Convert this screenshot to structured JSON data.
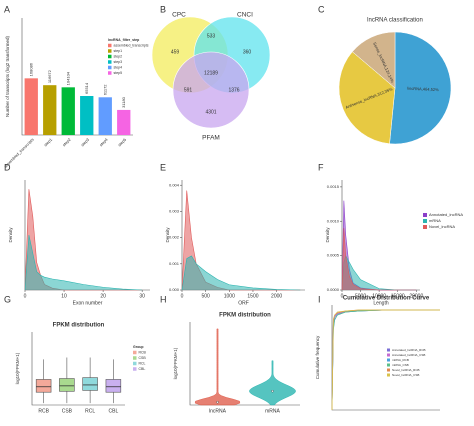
{
  "chart_data": [
    {
      "type": "bar",
      "panel": "A",
      "ylabel": "Number of transcripts (log2 transformed)",
      "categories": [
        "assembled_transcripts",
        "step1",
        "step2",
        "step3",
        "step4",
        "step5"
      ],
      "values": [
        168086,
        116672,
        104104,
        65514,
        61172,
        31180
      ],
      "colors": [
        "#f8766d",
        "#b79f00",
        "#00ba38",
        "#00bfc4",
        "#619cff",
        "#f564e3"
      ],
      "legend_title": "lncRNA_filter_step",
      "ylog": 2,
      "ylim": [
        8192,
        4194304
      ]
    },
    {
      "type": "venn",
      "panel": "B",
      "sets": [
        {
          "name": "CPC",
          "color": "#f3ec5c"
        },
        {
          "name": "CNCI",
          "color": "#5fe3ee"
        },
        {
          "name": "PFAM",
          "color": "#c8a6ef"
        }
      ],
      "regions": [
        459,
        533,
        360,
        12189,
        591,
        1376,
        4301
      ]
    },
    {
      "type": "pie",
      "panel": "C",
      "title": "lncRNA classification",
      "values": [
        464,
        312,
        124
      ],
      "value_labels": [
        "lincRNA,464,52%",
        "Antisense_lncRNA,312,35%",
        "Sense_lncRNA,124,14%"
      ],
      "colors": [
        "#3fa2d4",
        "#e7c942",
        "#d2b48c"
      ]
    },
    {
      "type": "area",
      "panel": "D",
      "xlabel": "Exon number",
      "ylabel": "Density",
      "x": [
        0,
        1,
        2,
        3,
        4,
        5,
        7,
        10,
        15,
        20,
        25,
        30
      ],
      "xlim": [
        0,
        32
      ],
      "xticks": [
        0,
        10,
        20,
        30
      ],
      "ylim": [
        0,
        0.6
      ],
      "series": [
        {
          "color": "#e05a5a",
          "values": [
            0,
            0.55,
            0.4,
            0.15,
            0.08,
            0.03,
            0.01,
            0,
            0,
            0,
            0,
            0
          ]
        },
        {
          "color": "#2bb5b0",
          "values": [
            0,
            0.3,
            0.2,
            0.1,
            0.08,
            0.07,
            0.06,
            0.05,
            0.03,
            0.015,
            0.005,
            0
          ]
        }
      ]
    },
    {
      "type": "area",
      "panel": "E",
      "xlabel": "ORF",
      "ylabel": "Density",
      "x": [
        0,
        100,
        200,
        300,
        500,
        750,
        1000,
        1500,
        2000,
        2500
      ],
      "xlim": [
        0,
        2600
      ],
      "xticks": [
        0,
        500,
        1000,
        1500,
        2000
      ],
      "ylim": [
        0,
        0.0042
      ],
      "yticks": [
        {
          "value": 0,
          "label": "0.000"
        },
        0.001,
        0.002,
        0.003,
        0.004
      ],
      "series": [
        {
          "color": "#e05a5a",
          "values": [
            0,
            0.0038,
            0.002,
            0.001,
            0.0003,
            0.0001,
            0,
            0,
            0,
            0
          ]
        },
        {
          "color": "#2bb5b0",
          "values": [
            0,
            0.0012,
            0.0013,
            0.001,
            0.0007,
            0.0004,
            0.0002,
            8e-05,
            2e-05,
            0
          ]
        }
      ]
    },
    {
      "type": "area",
      "panel": "F",
      "xlabel": "Length",
      "ylabel": "Density",
      "x": [
        0,
        500,
        1000,
        2000,
        3000,
        5000,
        10000,
        15000,
        20000
      ],
      "xlim": [
        0,
        21000
      ],
      "xticks": [
        0,
        5000,
        10000,
        15000,
        20000
      ],
      "ylim": [
        0,
        0.0016
      ],
      "yticks": [
        {
          "value": 0,
          "label": "0.0000"
        },
        0.0005,
        {
          "value": 0.001,
          "label": "0.0010"
        },
        0.0015
      ],
      "series": [
        {
          "name": "Annotated_lncRNA",
          "color": "#8b3fc9",
          "values": [
            0,
            0.0013,
            0.0008,
            0.0003,
            0.0001,
            3e-05,
            0,
            0,
            0
          ]
        },
        {
          "name": "mRNA",
          "color": "#2bb5b0",
          "values": [
            0,
            0.0004,
            0.0005,
            0.0004,
            0.0003,
            0.00015,
            2e-05,
            0,
            0
          ]
        },
        {
          "name": "Novel_lncRNA",
          "color": "#e05a5a",
          "values": [
            0,
            0.0009,
            0.0005,
            0.0002,
            8e-05,
            2e-05,
            0,
            0,
            0
          ]
        }
      ]
    },
    {
      "type": "box",
      "panel": "G",
      "title": "FPKM distribution",
      "ylabel": "log10(FPKM+1)",
      "legend_title": "Group",
      "categories": [
        "RCB",
        "CSB",
        "RCL",
        "CBL"
      ],
      "colors": [
        "#f4a99a",
        "#a9d98f",
        "#8fd9dc",
        "#c9b0ef"
      ],
      "whisker_low": [
        0.1,
        0.1,
        0.1,
        0.1
      ],
      "q1": [
        0.7,
        0.75,
        0.8,
        0.7
      ],
      "median": [
        1.0,
        1.05,
        1.1,
        1.0
      ],
      "q3": [
        1.4,
        1.45,
        1.5,
        1.4
      ],
      "whisker_high": [
        2.5,
        2.6,
        2.6,
        2.5
      ],
      "ylim": [
        0,
        4
      ]
    },
    {
      "type": "violin",
      "panel": "H",
      "title": "FPKM distribution",
      "ylabel": "log10(FPKM+1)",
      "categories": [
        "lncRNA",
        "mRNA"
      ],
      "colors": [
        "#e0604f",
        "#2bb5b0"
      ],
      "median": [
        0.2,
        1.0
      ],
      "max": [
        5.5,
        3.2
      ],
      "ylim": [
        0,
        6
      ]
    },
    {
      "type": "line",
      "panel": "I",
      "title": "Cumulative Distribution Curve",
      "ylabel": "Cumulative frequency",
      "x": [
        0,
        0.05,
        0.1,
        0.2,
        0.5,
        1,
        2,
        4
      ],
      "xlim": [
        0,
        4
      ],
      "ylim": [
        0,
        1.05
      ],
      "series": [
        {
          "name": "Annotated_lncRNA_RCB",
          "color": "#7b6fd6",
          "values": [
            0,
            0.86,
            0.93,
            0.96,
            0.98,
            0.99,
            1,
            1
          ]
        },
        {
          "name": "Annotated_lncRNA_CSB",
          "color": "#c46bd1",
          "values": [
            0,
            0.88,
            0.94,
            0.97,
            0.985,
            0.995,
            1,
            1
          ]
        },
        {
          "name": "mRNA_RCB",
          "color": "#4aa0e0",
          "values": [
            0,
            0.8,
            0.9,
            0.95,
            0.98,
            0.99,
            1,
            1
          ]
        },
        {
          "name": "mRNA_CSB",
          "color": "#5bbf8a",
          "values": [
            0,
            0.82,
            0.91,
            0.95,
            0.98,
            0.99,
            1,
            1
          ]
        },
        {
          "name": "Novel_lncRNA_RCB",
          "color": "#e08a4f",
          "values": [
            0,
            0.9,
            0.95,
            0.97,
            0.99,
            1,
            1,
            1
          ]
        },
        {
          "name": "Novel_lncRNA_CSB",
          "color": "#d9c24a",
          "values": [
            0,
            0.91,
            0.95,
            0.98,
            0.99,
            1,
            1,
            1
          ]
        }
      ]
    }
  ]
}
